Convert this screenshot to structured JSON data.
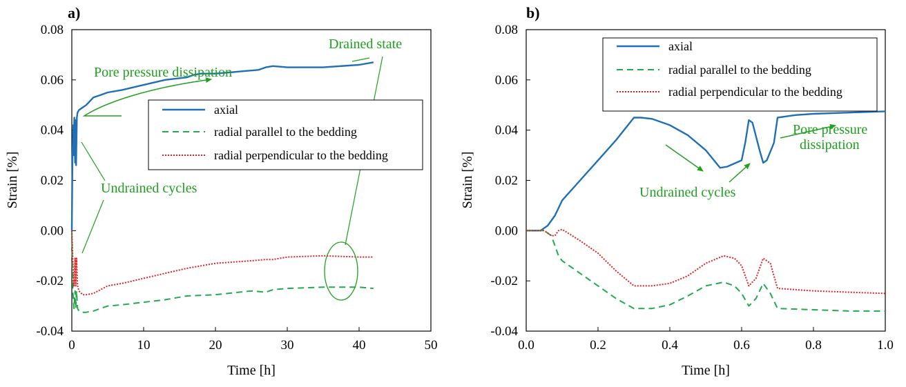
{
  "chart_data": [
    {
      "type": "line",
      "panel_label": "a)",
      "title": "",
      "xlabel": "Time [h]",
      "ylabel": "Strain [%]",
      "xlim": [
        0,
        50
      ],
      "ylim": [
        -0.04,
        0.08
      ],
      "x_ticks": [
        "0",
        "10",
        "20",
        "30",
        "40",
        "50"
      ],
      "y_ticks": [
        "-0.04",
        "-0.02",
        "0.00",
        "0.02",
        "0.04",
        "0.06",
        "0.08"
      ],
      "grid": false,
      "legend_position": "center-right",
      "series": [
        {
          "name": "axial",
          "color": "#1f6fb5",
          "dash": "solid",
          "x": [
            0,
            0.1,
            0.2,
            0.25,
            0.35,
            0.45,
            0.55,
            0.6,
            0.7,
            0.8,
            1,
            1.5,
            2,
            3,
            4,
            5,
            7,
            10,
            13,
            16,
            17,
            18,
            20,
            22,
            24,
            26,
            27,
            28,
            30,
            35,
            40,
            42
          ],
          "y": [
            0,
            0.03,
            0.042,
            0.03,
            0.045,
            0.027,
            0.044,
            0.026,
            0.045,
            0.047,
            0.048,
            0.049,
            0.05,
            0.053,
            0.054,
            0.055,
            0.056,
            0.058,
            0.06,
            0.061,
            0.062,
            0.0625,
            0.0625,
            0.063,
            0.0635,
            0.064,
            0.065,
            0.0655,
            0.065,
            0.065,
            0.066,
            0.067
          ]
        },
        {
          "name": "radial parallel to the bedding",
          "color": "#22aa4a",
          "dash": "dashed",
          "x": [
            0,
            0.15,
            0.3,
            0.45,
            0.55,
            0.65,
            0.8,
            1,
            1.5,
            2,
            3,
            4,
            5,
            7,
            10,
            13,
            16,
            20,
            25,
            27,
            28,
            30,
            35,
            40,
            42
          ],
          "y": [
            0,
            -0.025,
            -0.031,
            -0.024,
            -0.031,
            -0.024,
            -0.031,
            -0.032,
            -0.0325,
            -0.0325,
            -0.032,
            -0.031,
            -0.03,
            -0.0295,
            -0.0285,
            -0.0275,
            -0.026,
            -0.0255,
            -0.024,
            -0.0245,
            -0.0235,
            -0.023,
            -0.0225,
            -0.0225,
            -0.023
          ]
        },
        {
          "name": "radial perpendicular to the bedding",
          "color": "#e02020",
          "dash": "dotted",
          "x": [
            0,
            0.15,
            0.3,
            0.45,
            0.55,
            0.65,
            0.8,
            1,
            1.5,
            2,
            3,
            4,
            5,
            7,
            10,
            13,
            16,
            20,
            25,
            27,
            28,
            30,
            35,
            40,
            42
          ],
          "y": [
            0,
            -0.013,
            -0.022,
            -0.011,
            -0.022,
            -0.011,
            -0.022,
            -0.024,
            -0.0255,
            -0.0255,
            -0.025,
            -0.0235,
            -0.022,
            -0.021,
            -0.019,
            -0.017,
            -0.015,
            -0.013,
            -0.012,
            -0.0115,
            -0.0115,
            -0.0105,
            -0.01,
            -0.0105,
            -0.0105
          ]
        }
      ],
      "annotations": {
        "pore": "Pore pressure dissipation",
        "drained": "Drained state",
        "undrained": "Undrained cycles"
      }
    },
    {
      "type": "line",
      "panel_label": "b)",
      "title": "",
      "xlabel": "Time [h]",
      "ylabel": "Strain [%]",
      "xlim": [
        0,
        1.0
      ],
      "ylim": [
        -0.04,
        0.08
      ],
      "x_ticks": [
        "0.0",
        "0.2",
        "0.4",
        "0.6",
        "0.8",
        "1.0"
      ],
      "y_ticks": [
        "-0.04",
        "-0.02",
        "0.00",
        "0.02",
        "0.04",
        "0.06",
        "0.08"
      ],
      "grid": false,
      "legend_position": "top-right",
      "series": [
        {
          "name": "axial",
          "color": "#1f6fb5",
          "dash": "solid",
          "x": [
            0,
            0.04,
            0.06,
            0.08,
            0.09,
            0.1,
            0.15,
            0.2,
            0.25,
            0.3,
            0.32,
            0.35,
            0.4,
            0.45,
            0.5,
            0.54,
            0.56,
            0.6,
            0.61,
            0.62,
            0.63,
            0.65,
            0.66,
            0.67,
            0.69,
            0.7,
            0.75,
            0.8,
            0.9,
            1.0
          ],
          "y": [
            0,
            0,
            0.002,
            0.006,
            0.009,
            0.012,
            0.02,
            0.028,
            0.036,
            0.045,
            0.045,
            0.0445,
            0.042,
            0.038,
            0.032,
            0.025,
            0.0255,
            0.028,
            0.035,
            0.044,
            0.043,
            0.032,
            0.027,
            0.028,
            0.035,
            0.045,
            0.046,
            0.0465,
            0.047,
            0.0475
          ]
        },
        {
          "name": "radial parallel to the bedding",
          "color": "#22aa4a",
          "dash": "dashed",
          "x": [
            0,
            0.05,
            0.07,
            0.08,
            0.09,
            0.1,
            0.15,
            0.2,
            0.25,
            0.3,
            0.35,
            0.4,
            0.45,
            0.5,
            0.55,
            0.58,
            0.6,
            0.62,
            0.64,
            0.66,
            0.68,
            0.7,
            0.8,
            0.9,
            1.0
          ],
          "y": [
            0,
            0,
            -0.002,
            -0.006,
            -0.01,
            -0.012,
            -0.017,
            -0.022,
            -0.027,
            -0.031,
            -0.031,
            -0.0295,
            -0.026,
            -0.022,
            -0.0205,
            -0.022,
            -0.025,
            -0.03,
            -0.027,
            -0.021,
            -0.025,
            -0.031,
            -0.0315,
            -0.032,
            -0.032
          ]
        },
        {
          "name": "radial perpendicular to the bedding",
          "color": "#e02020",
          "dash": "dotted",
          "x": [
            0,
            0.05,
            0.07,
            0.08,
            0.09,
            0.1,
            0.15,
            0.2,
            0.25,
            0.3,
            0.35,
            0.4,
            0.45,
            0.5,
            0.55,
            0.58,
            0.6,
            0.62,
            0.64,
            0.66,
            0.68,
            0.7,
            0.8,
            0.9,
            1.0
          ],
          "y": [
            0,
            0,
            -0.002,
            -0.002,
            0,
            0.0005,
            -0.004,
            -0.009,
            -0.016,
            -0.022,
            -0.022,
            -0.021,
            -0.018,
            -0.013,
            -0.01,
            -0.011,
            -0.014,
            -0.022,
            -0.019,
            -0.011,
            -0.013,
            -0.023,
            -0.024,
            -0.0245,
            -0.025
          ]
        }
      ],
      "annotations": {
        "pore_line1": "Pore pressure",
        "pore_line2": "dissipation",
        "undrained": "Undrained cycles"
      }
    }
  ]
}
